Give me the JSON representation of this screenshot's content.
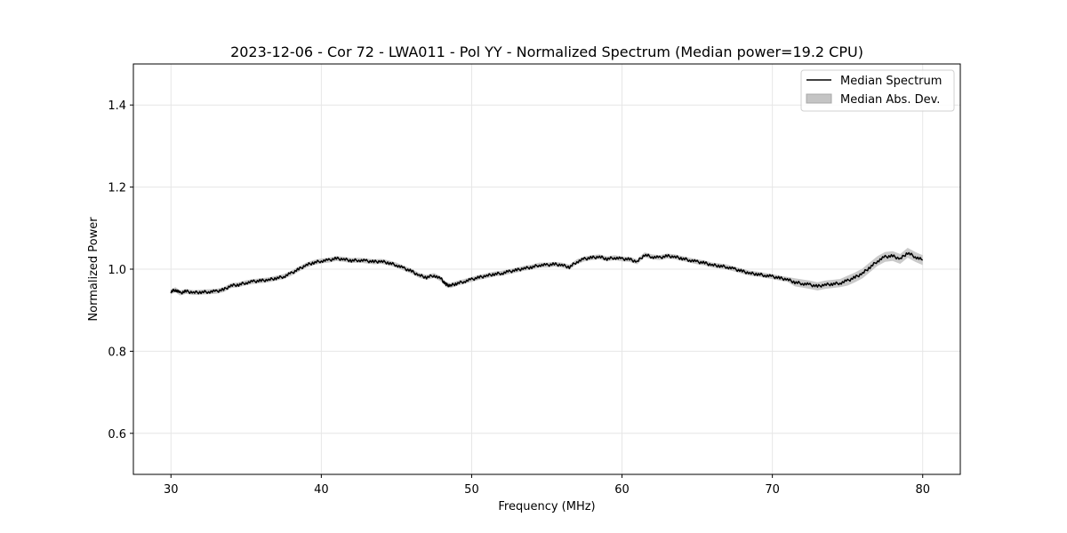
{
  "chart_data": {
    "type": "line",
    "title": "2023-12-06 - Cor 72 - LWA011 - Pol YY - Normalized Spectrum (Median power=19.2 CPU)",
    "xlabel": "Frequency (MHz)",
    "ylabel": "Normalized Power",
    "xlim": [
      27.5,
      82.5
    ],
    "ylim": [
      0.5,
      1.5
    ],
    "xticks": [
      30,
      40,
      50,
      60,
      70,
      80
    ],
    "xtick_labels": [
      "30",
      "40",
      "50",
      "60",
      "70",
      "80"
    ],
    "yticks": [
      0.6,
      0.8,
      1.0,
      1.2,
      1.4
    ],
    "ytick_labels": [
      "0.6",
      "0.8",
      "1.0",
      "1.2",
      "1.4"
    ],
    "grid": true,
    "legend_position": "top-right",
    "series": [
      {
        "name": "Median Spectrum",
        "color": "#000000",
        "x": [
          30.0,
          30.3,
          30.6,
          31.0,
          31.5,
          32.0,
          32.5,
          33.0,
          33.5,
          34.0,
          34.5,
          35.0,
          35.5,
          36.0,
          36.5,
          37.0,
          37.5,
          38.0,
          38.5,
          39.0,
          39.5,
          40.0,
          40.5,
          41.0,
          41.5,
          42.0,
          42.5,
          43.0,
          43.5,
          44.0,
          44.5,
          45.0,
          45.5,
          46.0,
          46.5,
          47.0,
          47.5,
          48.0,
          48.3,
          48.6,
          49.0,
          49.5,
          50.0,
          50.5,
          51.0,
          51.5,
          52.0,
          52.5,
          53.0,
          53.5,
          54.0,
          54.5,
          55.0,
          55.5,
          56.0,
          56.5,
          57.0,
          57.5,
          58.0,
          58.5,
          59.0,
          59.5,
          60.0,
          60.5,
          61.0,
          61.5,
          62.0,
          62.5,
          63.0,
          63.5,
          64.0,
          64.5,
          65.0,
          65.5,
          66.0,
          66.5,
          67.0,
          67.5,
          68.0,
          68.5,
          69.0,
          69.5,
          70.0,
          70.5,
          71.0,
          71.5,
          72.0,
          72.5,
          73.0,
          73.5,
          74.0,
          74.5,
          75.0,
          75.5,
          76.0,
          76.5,
          77.0,
          77.5,
          78.0,
          78.5,
          79.0,
          79.5,
          80.0
        ],
        "values": [
          0.945,
          0.95,
          0.942,
          0.946,
          0.943,
          0.944,
          0.945,
          0.946,
          0.95,
          0.96,
          0.962,
          0.967,
          0.97,
          0.972,
          0.974,
          0.978,
          0.982,
          0.99,
          1.0,
          1.01,
          1.016,
          1.02,
          1.022,
          1.026,
          1.024,
          1.021,
          1.022,
          1.02,
          1.018,
          1.019,
          1.015,
          1.01,
          1.002,
          0.995,
          0.985,
          0.98,
          0.985,
          0.975,
          0.962,
          0.96,
          0.965,
          0.97,
          0.975,
          0.98,
          0.984,
          0.988,
          0.99,
          0.994,
          0.998,
          1.002,
          1.005,
          1.01,
          1.01,
          1.012,
          1.01,
          1.005,
          1.018,
          1.025,
          1.028,
          1.03,
          1.025,
          1.028,
          1.025,
          1.024,
          1.018,
          1.035,
          1.03,
          1.028,
          1.032,
          1.03,
          1.026,
          1.022,
          1.018,
          1.015,
          1.01,
          1.008,
          1.005,
          1.0,
          0.995,
          0.99,
          0.988,
          0.985,
          0.982,
          0.978,
          0.975,
          0.968,
          0.965,
          0.962,
          0.958,
          0.962,
          0.964,
          0.966,
          0.972,
          0.98,
          0.99,
          1.005,
          1.02,
          1.03,
          1.032,
          1.025,
          1.04,
          1.03,
          1.022
        ]
      },
      {
        "name": "Median Abs. Dev.",
        "color": "#c4c4c4",
        "type": "band",
        "deviation": [
          0.006,
          0.006,
          0.006,
          0.006,
          0.006,
          0.006,
          0.006,
          0.006,
          0.006,
          0.006,
          0.006,
          0.006,
          0.006,
          0.006,
          0.006,
          0.006,
          0.006,
          0.006,
          0.006,
          0.006,
          0.006,
          0.006,
          0.006,
          0.006,
          0.006,
          0.006,
          0.006,
          0.006,
          0.006,
          0.006,
          0.006,
          0.006,
          0.006,
          0.006,
          0.006,
          0.006,
          0.006,
          0.006,
          0.006,
          0.006,
          0.006,
          0.006,
          0.006,
          0.006,
          0.006,
          0.006,
          0.006,
          0.006,
          0.006,
          0.006,
          0.006,
          0.006,
          0.006,
          0.006,
          0.006,
          0.006,
          0.006,
          0.006,
          0.006,
          0.006,
          0.006,
          0.006,
          0.006,
          0.006,
          0.006,
          0.006,
          0.006,
          0.006,
          0.006,
          0.006,
          0.006,
          0.006,
          0.006,
          0.006,
          0.006,
          0.006,
          0.006,
          0.006,
          0.006,
          0.006,
          0.006,
          0.006,
          0.006,
          0.006,
          0.006,
          0.01,
          0.01,
          0.01,
          0.01,
          0.01,
          0.01,
          0.01,
          0.012,
          0.012,
          0.012,
          0.012,
          0.012,
          0.012,
          0.012,
          0.012,
          0.012,
          0.012,
          0.012
        ]
      }
    ]
  }
}
